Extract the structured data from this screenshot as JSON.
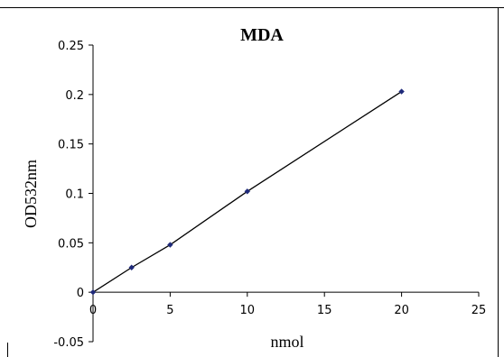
{
  "chart_data": {
    "type": "scatter",
    "title": "MDA",
    "xlabel": "nmol",
    "ylabel": "OD532nm",
    "xlim": [
      0,
      25
    ],
    "ylim": [
      -0.05,
      0.25
    ],
    "x_ticks": [
      0,
      5,
      10,
      15,
      20,
      25
    ],
    "y_ticks": [
      -0.05,
      0,
      0.05,
      0.1,
      0.15,
      0.2,
      0.25
    ],
    "x_tick_labels": [
      "0",
      "5",
      "10",
      "15",
      "20",
      "25"
    ],
    "y_tick_labels": [
      "-0.05",
      "0",
      "0.05",
      "0.1",
      "0.15",
      "0.2",
      "0.25"
    ],
    "grid": false,
    "legend": "none",
    "series": [
      {
        "x": [
          0,
          2.5,
          5,
          10,
          20
        ],
        "y": [
          0,
          0.025,
          0.048,
          0.102,
          0.203
        ],
        "marker_color": "#1f2a7a",
        "trendline": true,
        "trendline_color": "#000000"
      }
    ]
  }
}
